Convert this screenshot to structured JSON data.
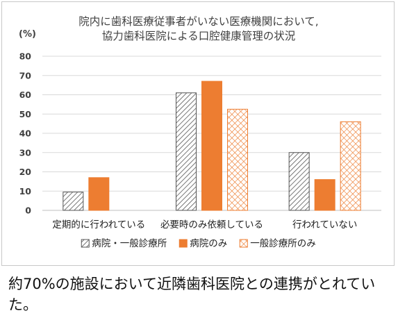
{
  "chart_data": {
    "type": "bar",
    "title_lines": [
      "院内に歯科医療従事者がいない医療機関において,",
      "協力歯科医院による口腔健康管理の状況"
    ],
    "ylabel": "(%)",
    "ylim": [
      0,
      80
    ],
    "yticks": [
      0,
      10,
      20,
      30,
      40,
      50,
      60,
      70,
      80
    ],
    "grid": true,
    "legend_position": "bottom",
    "categories": [
      "定期的に行われている",
      "必要時のみ依頼している",
      "行われていない"
    ],
    "series": [
      {
        "name": "病院・一般診療所",
        "values": [
          9.5,
          61,
          30
        ],
        "pattern": "diagonal-hatch",
        "color": "#444444"
      },
      {
        "name": "病院のみ",
        "values": [
          17,
          67,
          16
        ],
        "pattern": "solid",
        "color": "#ED7D31"
      },
      {
        "name": "一般診療所のみ",
        "values": [
          null,
          52.5,
          46
        ],
        "pattern": "crosshatch",
        "color": "#ED7D31"
      }
    ]
  },
  "caption": "約70%の施設において近隣歯科医院との連携がとれていた。"
}
